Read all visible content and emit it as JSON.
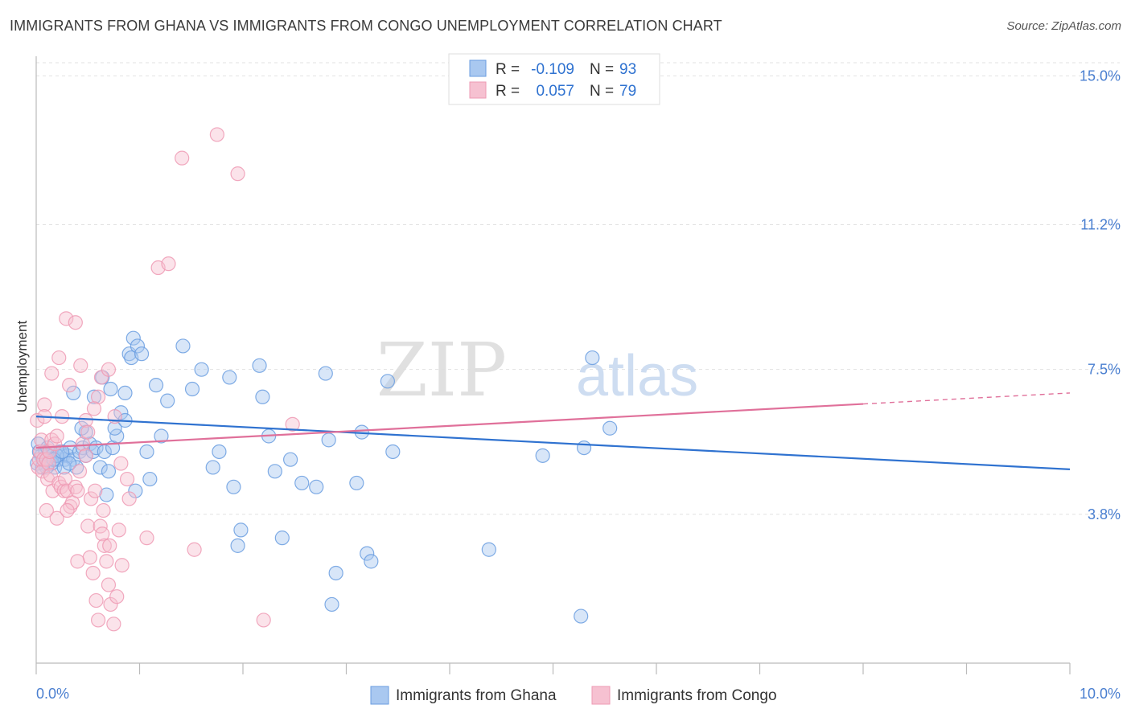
{
  "title": "IMMIGRANTS FROM GHANA VS IMMIGRANTS FROM CONGO UNEMPLOYMENT CORRELATION CHART",
  "source": "Source: ZipAtlas.com",
  "watermark": {
    "zip": "ZIP",
    "atlas": "atlas"
  },
  "chart_data": {
    "type": "scatter",
    "xlabel": "",
    "ylabel": "Unemployment",
    "xlim": [
      0,
      10
    ],
    "ylim": [
      0,
      15.5
    ],
    "x_tick_labels": [
      "0.0%",
      "10.0%"
    ],
    "y_ticks": [
      3.8,
      7.5,
      11.2,
      15.0
    ],
    "y_tick_labels": [
      "3.8%",
      "7.5%",
      "11.2%",
      "15.0%"
    ],
    "grid": "horizontal dashed",
    "legend_position": "bottom",
    "stats_box_position": "top-center",
    "series": [
      {
        "name": "Immigrants from Ghana",
        "color": "#6a9de0",
        "fill": "#a9c8f0",
        "stats": {
          "r_label": "R =",
          "r": "-0.109",
          "n_label": "N =",
          "n": "93"
        },
        "trend": {
          "x": [
            0,
            10
          ],
          "y": [
            6.3,
            4.95
          ],
          "color": "#2f72d0"
        },
        "points": [
          [
            0.02,
            5.6
          ],
          [
            0.05,
            5.3
          ],
          [
            0.07,
            5.1
          ],
          [
            0.09,
            5.4
          ],
          [
            0.12,
            5.3
          ],
          [
            0.14,
            5.2
          ],
          [
            0.16,
            5.3
          ],
          [
            0.18,
            5.0
          ],
          [
            0.21,
            5.2
          ],
          [
            0.23,
            5.4
          ],
          [
            0.26,
            5.3
          ],
          [
            0.28,
            5.2
          ],
          [
            0.3,
            5.3
          ],
          [
            0.33,
            5.5
          ],
          [
            0.36,
            5.2
          ],
          [
            0.39,
            5.0
          ],
          [
            0.42,
            5.4
          ],
          [
            0.45,
            5.5
          ],
          [
            0.48,
            5.3
          ],
          [
            0.52,
            5.6
          ],
          [
            0.55,
            5.4
          ],
          [
            0.58,
            5.5
          ],
          [
            0.62,
            5.0
          ],
          [
            0.66,
            5.4
          ],
          [
            0.7,
            4.9
          ],
          [
            0.74,
            5.5
          ],
          [
            0.78,
            5.8
          ],
          [
            0.82,
            6.4
          ],
          [
            0.86,
            6.9
          ],
          [
            0.9,
            7.9
          ],
          [
            0.94,
            8.3
          ],
          [
            0.96,
            4.4
          ],
          [
            0.36,
            6.9
          ],
          [
            0.68,
            4.3
          ],
          [
            0.48,
            5.9
          ],
          [
            0.72,
            7.0
          ],
          [
            0.15,
            5.1
          ],
          [
            0.1,
            5.0
          ],
          [
            0.2,
            5.3
          ],
          [
            0.27,
            5.0
          ],
          [
            0.01,
            5.1
          ],
          [
            0.03,
            5.4
          ],
          [
            0.06,
            5.0
          ],
          [
            0.11,
            5.5
          ],
          [
            0.17,
            5.2
          ],
          [
            0.25,
            5.4
          ],
          [
            0.32,
            5.1
          ],
          [
            0.44,
            6.0
          ],
          [
            0.56,
            6.8
          ],
          [
            0.64,
            7.3
          ],
          [
            0.76,
            6.0
          ],
          [
            0.86,
            6.2
          ],
          [
            0.92,
            7.8
          ],
          [
            0.98,
            8.1
          ],
          [
            1.02,
            7.9
          ],
          [
            1.07,
            5.4
          ],
          [
            1.1,
            4.7
          ],
          [
            1.16,
            7.1
          ],
          [
            1.21,
            5.8
          ],
          [
            1.27,
            6.7
          ],
          [
            1.42,
            8.1
          ],
          [
            1.51,
            7.0
          ],
          [
            1.6,
            7.5
          ],
          [
            1.71,
            5.0
          ],
          [
            1.77,
            5.4
          ],
          [
            1.87,
            7.3
          ],
          [
            1.91,
            4.5
          ],
          [
            1.95,
            3.0
          ],
          [
            1.98,
            3.4
          ],
          [
            2.16,
            7.6
          ],
          [
            2.19,
            6.8
          ],
          [
            2.25,
            5.8
          ],
          [
            2.31,
            4.9
          ],
          [
            2.38,
            3.2
          ],
          [
            2.46,
            5.2
          ],
          [
            2.57,
            4.6
          ],
          [
            2.71,
            4.5
          ],
          [
            2.8,
            7.4
          ],
          [
            2.83,
            5.7
          ],
          [
            2.86,
            1.5
          ],
          [
            2.9,
            2.3
          ],
          [
            3.1,
            4.6
          ],
          [
            3.15,
            5.9
          ],
          [
            3.2,
            2.8
          ],
          [
            3.24,
            2.6
          ],
          [
            3.4,
            7.2
          ],
          [
            3.45,
            5.4
          ],
          [
            4.38,
            2.9
          ],
          [
            4.9,
            5.3
          ],
          [
            5.27,
            1.2
          ],
          [
            5.3,
            5.5
          ],
          [
            5.55,
            6.0
          ],
          [
            5.38,
            7.8
          ]
        ]
      },
      {
        "name": "Immigrants from Congo",
        "color": "#ee9ab4",
        "fill": "#f6c1d1",
        "stats": {
          "r_label": "R =",
          "r": "0.057",
          "n_label": "N =",
          "n": "79"
        },
        "trend": {
          "x": [
            0,
            8.0
          ],
          "y": [
            5.5,
            6.62
          ],
          "dash_x": [
            8.0,
            10
          ],
          "dash_y": [
            6.62,
            6.9
          ],
          "color": "#e0709a"
        },
        "points": [
          [
            0.01,
            6.2
          ],
          [
            0.02,
            5.0
          ],
          [
            0.03,
            5.2
          ],
          [
            0.04,
            5.4
          ],
          [
            0.05,
            5.7
          ],
          [
            0.06,
            4.9
          ],
          [
            0.07,
            5.2
          ],
          [
            0.08,
            6.6
          ],
          [
            0.1,
            5.2
          ],
          [
            0.11,
            4.7
          ],
          [
            0.12,
            5.1
          ],
          [
            0.13,
            5.4
          ],
          [
            0.14,
            4.8
          ],
          [
            0.15,
            5.7
          ],
          [
            0.16,
            4.4
          ],
          [
            0.18,
            5.6
          ],
          [
            0.2,
            5.8
          ],
          [
            0.22,
            4.6
          ],
          [
            0.24,
            4.5
          ],
          [
            0.25,
            6.3
          ],
          [
            0.27,
            4.4
          ],
          [
            0.28,
            4.7
          ],
          [
            0.3,
            4.4
          ],
          [
            0.33,
            4.0
          ],
          [
            0.35,
            4.1
          ],
          [
            0.38,
            4.5
          ],
          [
            0.4,
            4.4
          ],
          [
            0.42,
            4.9
          ],
          [
            0.45,
            5.6
          ],
          [
            0.48,
            6.2
          ],
          [
            0.5,
            3.5
          ],
          [
            0.52,
            2.7
          ],
          [
            0.55,
            2.3
          ],
          [
            0.58,
            1.6
          ],
          [
            0.6,
            1.1
          ],
          [
            0.62,
            3.5
          ],
          [
            0.64,
            3.3
          ],
          [
            0.66,
            3.0
          ],
          [
            0.68,
            2.6
          ],
          [
            0.7,
            2.0
          ],
          [
            0.72,
            1.5
          ],
          [
            0.75,
            1.0
          ],
          [
            0.08,
            6.3
          ],
          [
            0.15,
            7.4
          ],
          [
            0.22,
            7.8
          ],
          [
            0.29,
            8.8
          ],
          [
            0.32,
            7.1
          ],
          [
            0.38,
            8.7
          ],
          [
            0.43,
            7.6
          ],
          [
            0.5,
            5.9
          ],
          [
            0.53,
            4.2
          ],
          [
            0.57,
            4.4
          ],
          [
            0.6,
            6.8
          ],
          [
            0.65,
            3.9
          ],
          [
            0.71,
            3.0
          ],
          [
            0.78,
            1.7
          ],
          [
            0.8,
            3.4
          ],
          [
            0.83,
            2.5
          ],
          [
            0.9,
            4.2
          ],
          [
            0.1,
            3.9
          ],
          [
            0.2,
            3.7
          ],
          [
            0.3,
            3.9
          ],
          [
            0.4,
            2.6
          ],
          [
            0.48,
            5.3
          ],
          [
            0.56,
            6.5
          ],
          [
            0.63,
            7.3
          ],
          [
            0.7,
            7.5
          ],
          [
            0.76,
            6.3
          ],
          [
            0.82,
            5.1
          ],
          [
            0.88,
            4.7
          ],
          [
            1.07,
            3.2
          ],
          [
            1.18,
            10.1
          ],
          [
            1.28,
            10.2
          ],
          [
            1.41,
            12.9
          ],
          [
            1.53,
            2.9
          ],
          [
            1.75,
            13.5
          ],
          [
            1.95,
            12.5
          ],
          [
            2.2,
            1.1
          ],
          [
            2.48,
            6.1
          ]
        ]
      }
    ]
  }
}
